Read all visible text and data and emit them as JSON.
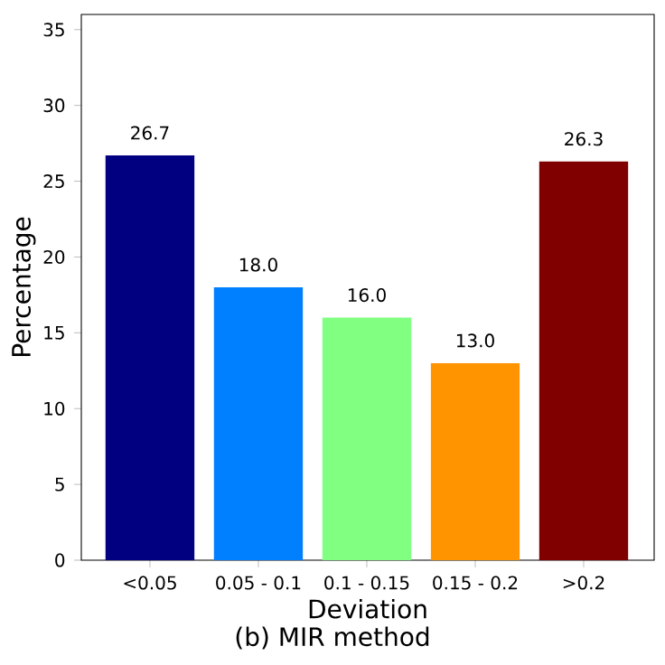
{
  "chart_data": {
    "type": "bar",
    "xlabel": "Deviation",
    "ylabel": "Percentage",
    "annotations": [
      "(b) MIR method"
    ],
    "categories": [
      "<0.05",
      "0.05 - 0.1",
      "0.1 - 0.15",
      "0.15 - 0.2",
      ">0.2"
    ],
    "values": [
      26.7,
      18.0,
      16.0,
      13.0,
      26.3
    ],
    "value_labels": [
      "26.7",
      "18.0",
      "16.0",
      "13.0",
      "26.3"
    ],
    "colors": [
      "#000080",
      "#0080ff",
      "#80ff80",
      "#ff9400",
      "#800000"
    ],
    "ylim": [
      0,
      36
    ],
    "yticks": [
      0,
      5,
      10,
      15,
      20,
      25,
      30,
      35
    ],
    "grid": false
  }
}
